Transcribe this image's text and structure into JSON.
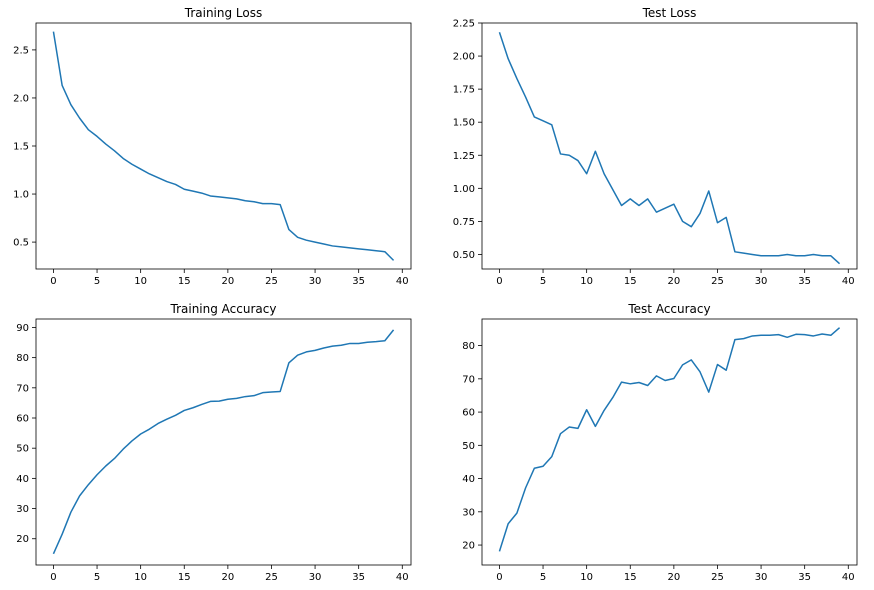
{
  "chart_data": [
    {
      "type": "line",
      "title": "Training Loss",
      "xlabel": "",
      "ylabel": "",
      "xlim": [
        -2,
        41
      ],
      "ylim": [
        0.22,
        2.78
      ],
      "xticks": [
        0,
        5,
        10,
        15,
        20,
        25,
        30,
        35,
        40
      ],
      "yticks": [
        0.5,
        1.0,
        1.5,
        2.0,
        2.5
      ],
      "ytick_labels": [
        "0.5",
        "1.0",
        "1.5",
        "2.0",
        "2.5"
      ],
      "grid": false,
      "color": "#1f77b4",
      "x": [
        0,
        1,
        2,
        3,
        4,
        5,
        6,
        7,
        8,
        9,
        10,
        11,
        12,
        13,
        14,
        15,
        16,
        17,
        18,
        19,
        20,
        21,
        22,
        23,
        24,
        25,
        26,
        27,
        28,
        29,
        30,
        31,
        32,
        33,
        34,
        35,
        36,
        37,
        38,
        39
      ],
      "y": [
        2.69,
        2.13,
        1.93,
        1.79,
        1.67,
        1.6,
        1.52,
        1.45,
        1.37,
        1.31,
        1.26,
        1.21,
        1.17,
        1.13,
        1.1,
        1.05,
        1.03,
        1.01,
        0.98,
        0.97,
        0.96,
        0.95,
        0.93,
        0.92,
        0.9,
        0.9,
        0.89,
        0.63,
        0.55,
        0.52,
        0.5,
        0.48,
        0.46,
        0.45,
        0.44,
        0.43,
        0.42,
        0.41,
        0.4,
        0.31
      ]
    },
    {
      "type": "line",
      "title": "Test Loss",
      "xlabel": "",
      "ylabel": "",
      "xlim": [
        -2,
        41
      ],
      "ylim": [
        0.39,
        2.25
      ],
      "xticks": [
        0,
        5,
        10,
        15,
        20,
        25,
        30,
        35,
        40
      ],
      "yticks": [
        0.5,
        0.75,
        1.0,
        1.25,
        1.5,
        1.75,
        2.0,
        2.25
      ],
      "ytick_labels": [
        "0.50",
        "0.75",
        "1.00",
        "1.25",
        "1.50",
        "1.75",
        "2.00",
        "2.25"
      ],
      "grid": false,
      "color": "#1f77b4",
      "x": [
        0,
        1,
        2,
        3,
        4,
        5,
        6,
        7,
        8,
        9,
        10,
        11,
        12,
        13,
        14,
        15,
        16,
        17,
        18,
        19,
        20,
        21,
        22,
        23,
        24,
        25,
        26,
        27,
        28,
        29,
        30,
        31,
        32,
        33,
        34,
        35,
        36,
        37,
        38,
        39
      ],
      "y": [
        2.18,
        1.98,
        1.83,
        1.69,
        1.54,
        1.51,
        1.48,
        1.26,
        1.25,
        1.21,
        1.11,
        1.28,
        1.11,
        0.99,
        0.87,
        0.92,
        0.87,
        0.92,
        0.82,
        0.85,
        0.88,
        0.75,
        0.71,
        0.81,
        0.98,
        0.74,
        0.78,
        0.52,
        0.51,
        0.5,
        0.49,
        0.49,
        0.49,
        0.5,
        0.49,
        0.49,
        0.5,
        0.49,
        0.49,
        0.43
      ]
    },
    {
      "type": "line",
      "title": "Training Accuracy",
      "xlabel": "",
      "ylabel": "",
      "xlim": [
        -2,
        41
      ],
      "ylim": [
        11.3,
        92.8
      ],
      "xticks": [
        0,
        5,
        10,
        15,
        20,
        25,
        30,
        35,
        40
      ],
      "yticks": [
        20,
        30,
        40,
        50,
        60,
        70,
        80,
        90
      ],
      "ytick_labels": [
        "20",
        "30",
        "40",
        "50",
        "60",
        "70",
        "80",
        "90"
      ],
      "grid": false,
      "color": "#1f77b4",
      "x": [
        0,
        1,
        2,
        3,
        4,
        5,
        6,
        7,
        8,
        9,
        10,
        11,
        12,
        13,
        14,
        15,
        16,
        17,
        18,
        19,
        20,
        21,
        22,
        23,
        24,
        25,
        26,
        27,
        28,
        29,
        30,
        31,
        32,
        33,
        34,
        35,
        36,
        37,
        38,
        39
      ],
      "y": [
        15.0,
        21.5,
        28.8,
        34.2,
        37.9,
        41.2,
        44.1,
        46.6,
        49.7,
        52.4,
        54.7,
        56.3,
        58.2,
        59.6,
        60.9,
        62.5,
        63.4,
        64.5,
        65.5,
        65.6,
        66.2,
        66.5,
        67.1,
        67.4,
        68.4,
        68.6,
        68.8,
        78.3,
        80.8,
        81.9,
        82.4,
        83.2,
        83.8,
        84.1,
        84.7,
        84.7,
        85.1,
        85.3,
        85.6,
        89.2
      ]
    },
    {
      "type": "line",
      "title": "Test Accuracy",
      "xlabel": "",
      "ylabel": "",
      "xlim": [
        -2,
        41
      ],
      "ylim": [
        14.0,
        88.0
      ],
      "xticks": [
        0,
        5,
        10,
        15,
        20,
        25,
        30,
        35,
        40
      ],
      "yticks": [
        20,
        30,
        40,
        50,
        60,
        70,
        80
      ],
      "ytick_labels": [
        "20",
        "30",
        "40",
        "50",
        "60",
        "70",
        "80"
      ],
      "grid": false,
      "color": "#1f77b4",
      "x": [
        0,
        1,
        2,
        3,
        4,
        5,
        6,
        7,
        8,
        9,
        10,
        11,
        12,
        13,
        14,
        15,
        16,
        17,
        18,
        19,
        20,
        21,
        22,
        23,
        24,
        25,
        26,
        27,
        28,
        29,
        30,
        31,
        32,
        33,
        34,
        35,
        36,
        37,
        38,
        39
      ],
      "y": [
        18.1,
        26.4,
        29.6,
        37.2,
        43.1,
        43.7,
        46.6,
        53.5,
        55.5,
        55.1,
        60.7,
        55.7,
        60.5,
        64.4,
        69.0,
        68.5,
        68.9,
        68.0,
        70.9,
        69.5,
        70.1,
        74.2,
        75.7,
        72.1,
        66.0,
        74.3,
        72.6,
        81.8,
        82.1,
        82.9,
        83.1,
        83.1,
        83.3,
        82.5,
        83.4,
        83.3,
        82.9,
        83.5,
        83.1,
        85.4
      ]
    }
  ]
}
